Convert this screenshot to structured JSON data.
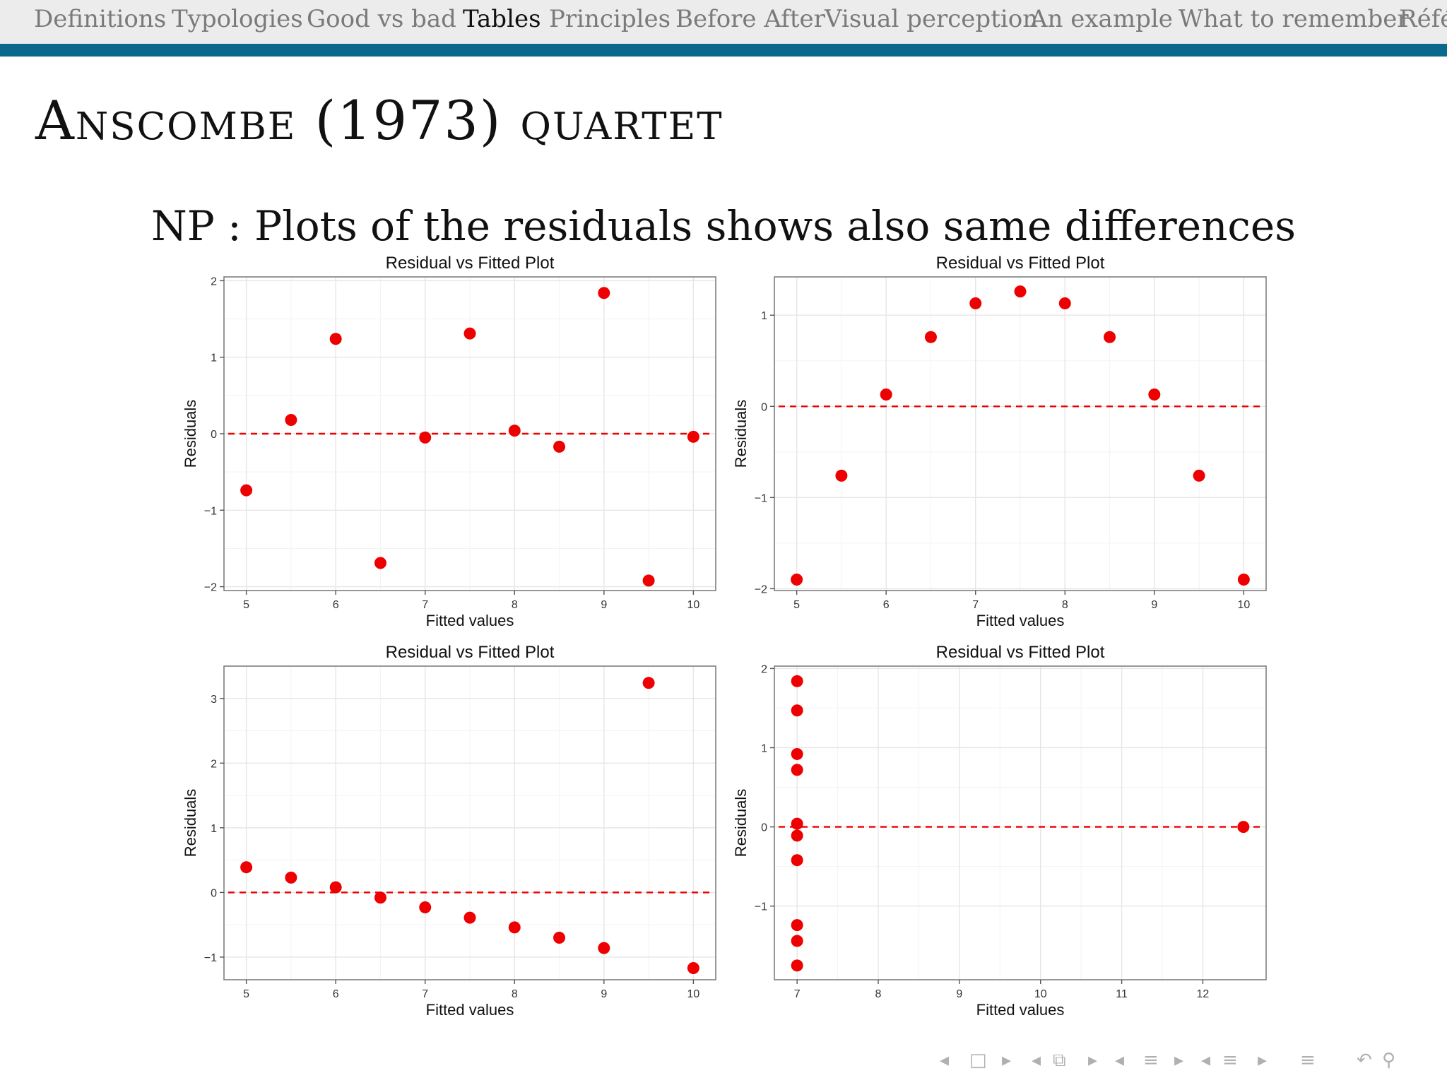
{
  "nav": {
    "items": [
      {
        "label": "Definitions",
        "active": false
      },
      {
        "label": "Typologies",
        "active": false
      },
      {
        "label": "Good vs bad",
        "active": false
      },
      {
        "label": "Tables",
        "active": true
      },
      {
        "label": "Principles",
        "active": false
      },
      {
        "label": "Before After",
        "active": false
      },
      {
        "label": "Visual perception",
        "active": false
      },
      {
        "label": "An example",
        "active": false
      },
      {
        "label": "What to remember",
        "active": false
      },
      {
        "label": "Réfé",
        "active": false
      }
    ],
    "bar_color": "#0b6a8c"
  },
  "slide": {
    "title": "Anscombe (1973) quartet",
    "subtitle": "NP : Plots of the residuals shows also same differences"
  },
  "chart_data": [
    {
      "type": "scatter",
      "title": "Residual vs Fitted Plot",
      "xlabel": "Fitted values",
      "ylabel": "Residuals",
      "xlim": [
        4.75,
        10.25
      ],
      "ylim": [
        -2.05,
        2.05
      ],
      "xticks": [
        5,
        6,
        7,
        8,
        9,
        10
      ],
      "yticks": [
        -2,
        -1,
        0,
        1,
        2
      ],
      "xtick_labels": [
        "5",
        "6",
        "7",
        "8",
        "9",
        "10"
      ],
      "ytick_labels": [
        "−2",
        "−1",
        "0",
        "1",
        "2"
      ],
      "hline": 0,
      "grid": true,
      "color": "#ee0000",
      "x": [
        5.0,
        5.5,
        6.0,
        6.5,
        7.0,
        7.5,
        8.0,
        8.5,
        9.0,
        9.5,
        10.0
      ],
      "y": [
        -0.74,
        0.18,
        1.24,
        -1.69,
        -0.05,
        1.31,
        0.04,
        -0.17,
        1.84,
        -1.92,
        -0.04
      ]
    },
    {
      "type": "scatter",
      "title": "Residual vs Fitted Plot",
      "xlabel": "Fitted values",
      "ylabel": "Residuals",
      "xlim": [
        4.75,
        10.25
      ],
      "ylim": [
        -2.02,
        1.42
      ],
      "xticks": [
        5,
        6,
        7,
        8,
        9,
        10
      ],
      "yticks": [
        -2,
        -1,
        0,
        1
      ],
      "xtick_labels": [
        "5",
        "6",
        "7",
        "8",
        "9",
        "10"
      ],
      "ytick_labels": [
        "−2",
        "−1",
        "0",
        "1"
      ],
      "hline": 0,
      "grid": true,
      "color": "#ee0000",
      "x": [
        5.0,
        5.5,
        6.0,
        6.5,
        7.0,
        7.5,
        8.0,
        8.5,
        9.0,
        9.5,
        10.0
      ],
      "y": [
        -1.9,
        -0.76,
        0.13,
        0.76,
        1.13,
        1.26,
        1.13,
        0.76,
        0.13,
        -0.76,
        -1.9
      ]
    },
    {
      "type": "scatter",
      "title": "Residual vs Fitted Plot",
      "xlabel": "Fitted values",
      "ylabel": "Residuals",
      "xlim": [
        4.75,
        10.25
      ],
      "ylim": [
        -1.35,
        3.5
      ],
      "xticks": [
        5,
        6,
        7,
        8,
        9,
        10
      ],
      "yticks": [
        -1,
        0,
        1,
        2,
        3
      ],
      "xtick_labels": [
        "5",
        "6",
        "7",
        "8",
        "9",
        "10"
      ],
      "ytick_labels": [
        "−1",
        "0",
        "1",
        "2",
        "3"
      ],
      "hline": 0,
      "grid": true,
      "color": "#ee0000",
      "x": [
        5.0,
        5.5,
        6.0,
        6.5,
        7.0,
        7.5,
        8.0,
        8.5,
        9.0,
        9.5,
        10.0
      ],
      "y": [
        0.39,
        0.23,
        0.08,
        -0.08,
        -0.23,
        -0.39,
        -0.54,
        -0.7,
        -0.86,
        3.24,
        -1.17
      ]
    },
    {
      "type": "scatter",
      "title": "Residual vs Fitted Plot",
      "xlabel": "Fitted values",
      "ylabel": "Residuals",
      "xlim": [
        6.72,
        12.78
      ],
      "ylim": [
        -1.93,
        2.03
      ],
      "xticks": [
        7,
        8,
        9,
        10,
        11,
        12
      ],
      "yticks": [
        -1,
        0,
        1,
        2
      ],
      "xtick_labels": [
        "7",
        "8",
        "9",
        "10",
        "11",
        "12"
      ],
      "ytick_labels": [
        "−1",
        "0",
        "1",
        "2"
      ],
      "hline": 0,
      "grid": true,
      "color": "#ee0000",
      "x": [
        7.0,
        7.0,
        7.0,
        7.0,
        7.0,
        7.0,
        7.0,
        7.0,
        7.0,
        7.0,
        12.5
      ],
      "y": [
        1.84,
        1.47,
        0.92,
        0.72,
        0.04,
        -0.11,
        -0.42,
        -1.24,
        -1.44,
        -1.75,
        0.0
      ]
    }
  ],
  "pager": {
    "icons": [
      "triangle-left-icon",
      "frame-icon",
      "triangle-right-icon",
      "triangle-left-icon",
      "subsection-icon",
      "triangle-right-icon",
      "triangle-left-icon",
      "section-icon",
      "triangle-right-icon",
      "triangle-left-icon",
      "list-icon",
      "triangle-right-icon",
      "toc-icon",
      "undo-icon",
      "search-icon"
    ]
  }
}
